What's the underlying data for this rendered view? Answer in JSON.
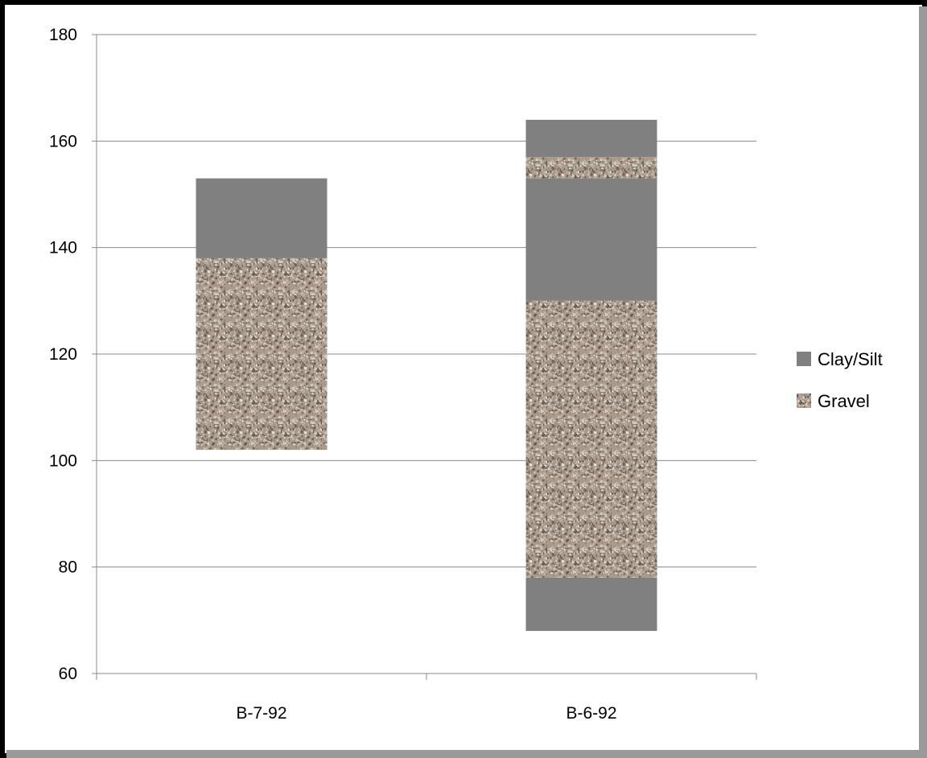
{
  "chart_data": {
    "type": "bar",
    "subtype": "floating-stacked",
    "title": "",
    "xlabel": "",
    "ylabel": "",
    "categories": [
      "B-7-92",
      "B-6-92"
    ],
    "ylim": [
      60,
      180
    ],
    "yticks": [
      "60",
      "80",
      "100",
      "120",
      "140",
      "160",
      "180"
    ],
    "grid": true,
    "legend_position": "right",
    "series": [
      {
        "name": "Clay/Silt",
        "color": "#808080",
        "pattern": "solid"
      },
      {
        "name": "Gravel",
        "color": "#a89a8c",
        "pattern": "speckled-gravel"
      }
    ],
    "segments": [
      {
        "category": "B-7-92",
        "series": "Gravel",
        "from": 102,
        "to": 138
      },
      {
        "category": "B-7-92",
        "series": "Clay/Silt",
        "from": 138,
        "to": 153
      },
      {
        "category": "B-6-92",
        "series": "Clay/Silt",
        "from": 68,
        "to": 78
      },
      {
        "category": "B-6-92",
        "series": "Gravel",
        "from": 78,
        "to": 130
      },
      {
        "category": "B-6-92",
        "series": "Clay/Silt",
        "from": 130,
        "to": 153
      },
      {
        "category": "B-6-92",
        "series": "Gravel",
        "from": 153,
        "to": 157
      },
      {
        "category": "B-6-92",
        "series": "Clay/Silt",
        "from": 157,
        "to": 164
      }
    ]
  }
}
